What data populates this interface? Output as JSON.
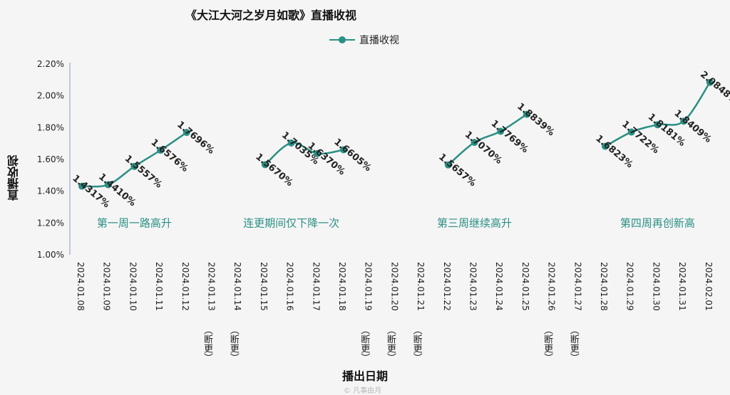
{
  "chart_data": {
    "type": "line",
    "title": "《大江大河之岁月如歌》直播收视",
    "xlabel": "播出日期",
    "ylabel": "直播收视",
    "legend": {
      "position": "top-center",
      "label": "直播收视"
    },
    "ylim": [
      1.0,
      2.2
    ],
    "yticks": [
      "1.00%",
      "1.20%",
      "1.40%",
      "1.60%",
      "1.80%",
      "2.00%",
      "2.20%"
    ],
    "grid": false,
    "color": "#2a8f84",
    "categories": [
      "2024.01.08",
      "2024.01.09",
      "2024.01.10",
      "2024.01.11",
      "2024.01.12",
      "2024.01.13",
      "2024.01.14",
      "2024.01.15",
      "2024.01.16",
      "2024.01.17",
      "2024.01.18",
      "2024.01.19",
      "2024.01.20",
      "2024.01.21",
      "2024.01.22",
      "2024.01.23",
      "2024.01.24",
      "2024.01.25",
      "2024.01.26",
      "2024.01.27",
      "2024.01.28",
      "2024.01.29",
      "2024.01.30",
      "2024.01.31",
      "2024.02.01"
    ],
    "gap_note": "（断更）",
    "gap_dates": [
      "2024.01.13",
      "2024.01.14",
      "2024.01.19",
      "2024.01.20",
      "2024.01.21",
      "2024.01.26",
      "2024.01.27"
    ],
    "series": [
      {
        "name": "直播收视",
        "values": [
          1.4317,
          1.441,
          1.5557,
          1.6576,
          1.7696,
          null,
          null,
          1.567,
          1.7035,
          1.637,
          1.6605,
          null,
          null,
          null,
          1.5657,
          1.707,
          1.7769,
          1.8839,
          null,
          null,
          1.6823,
          1.7722,
          1.8181,
          1.8409,
          2.0848
        ],
        "labels": [
          "1.4317%",
          "1.4410%",
          "1.5557%",
          "1.6576%",
          "1.7696%",
          null,
          null,
          "1.5670%",
          "1.7035%",
          "1.6370%",
          "1.6605%",
          null,
          null,
          null,
          "1.5657%",
          "1.7070%",
          "1.7769%",
          "1.8839%",
          null,
          null,
          "1.6823%",
          "1.7722%",
          "1.8181%",
          "1.8409%",
          "2.0848%"
        ]
      }
    ],
    "annotations": [
      {
        "text": "第一周一路高升",
        "at_category": "2024.01.10",
        "y": 1.2
      },
      {
        "text": "连更期间仅下降一次",
        "at_category": "2024.01.16",
        "y": 1.2
      },
      {
        "text": "第三周继续高升",
        "at_category": "2024.01.23",
        "y": 1.2
      },
      {
        "text": "第四周再创新高",
        "at_category": "2024.01.30",
        "y": 1.2
      }
    ]
  },
  "watermark": "© 凡事由月"
}
